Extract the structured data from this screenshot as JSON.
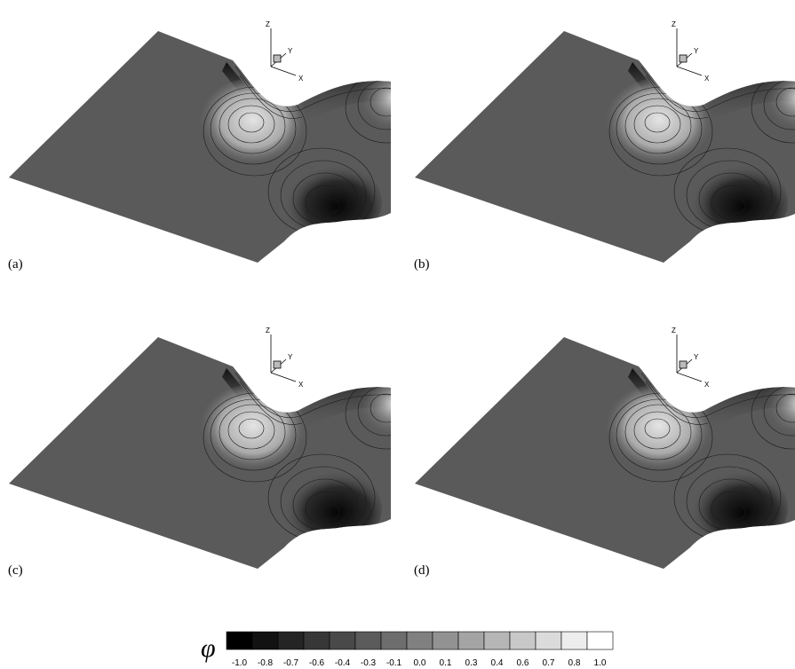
{
  "panels": [
    {
      "label": "(a)"
    },
    {
      "label": "(b)"
    },
    {
      "label": "(c)"
    },
    {
      "label": "(d)"
    }
  ],
  "axis_labels": {
    "z": "Z",
    "y": "Y",
    "x": "X"
  },
  "colorbar": {
    "symbol": "φ",
    "labels": [
      "-1.0",
      "-0.8",
      "-0.7",
      "-0.6",
      "-0.4",
      "-0.3",
      "-0.1",
      "0.0",
      "0.1",
      "0.3",
      "0.4",
      "0.6",
      "0.7",
      "0.8",
      "1.0"
    ]
  }
}
